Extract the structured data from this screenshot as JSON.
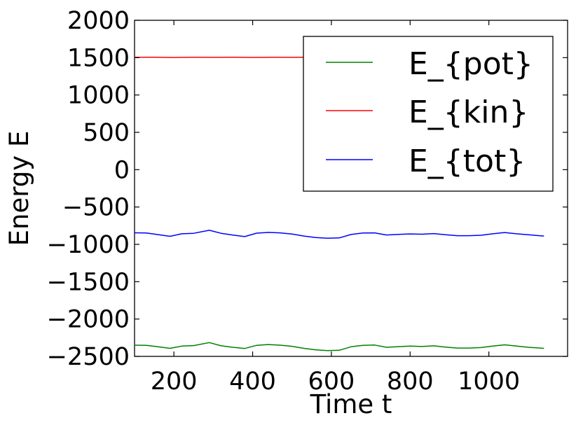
{
  "chart_data": {
    "type": "line",
    "title": "",
    "xlabel": "Time t",
    "ylabel": "Energy E",
    "xlim": [
      100,
      1200
    ],
    "ylim": [
      -2500,
      2000
    ],
    "xticks": [
      200,
      400,
      600,
      800,
      1000
    ],
    "xtick_labels": [
      "200",
      "400",
      "600",
      "800",
      "1000"
    ],
    "yticks": [
      -2500,
      -2000,
      -1500,
      -1000,
      -500,
      0,
      500,
      1000,
      1500,
      2000
    ],
    "ytick_labels": [
      "−2500",
      "−2000",
      "−1500",
      "−1000",
      "−500",
      "0",
      "500",
      "1000",
      "1500",
      "2000"
    ],
    "grid": false,
    "legend_position": "top-right",
    "series": [
      {
        "name": "E_{pot}",
        "color": "#008000",
        "x": [
          100,
          130,
          160,
          190,
          220,
          250,
          290,
          320,
          350,
          380,
          410,
          440,
          470,
          500,
          530,
          560,
          590,
          620,
          650,
          680,
          710,
          740,
          770,
          800,
          830,
          860,
          890,
          920,
          950,
          980,
          1010,
          1040,
          1070,
          1100,
          1140
        ],
        "y": [
          -2350,
          -2352,
          -2372,
          -2392,
          -2362,
          -2356,
          -2315,
          -2358,
          -2378,
          -2394,
          -2352,
          -2342,
          -2350,
          -2365,
          -2392,
          -2412,
          -2422,
          -2418,
          -2372,
          -2352,
          -2348,
          -2378,
          -2370,
          -2362,
          -2368,
          -2358,
          -2376,
          -2388,
          -2388,
          -2382,
          -2362,
          -2345,
          -2362,
          -2378,
          -2392
        ]
      },
      {
        "name": "E_{kin}",
        "color": "#ff0000",
        "x": [
          100,
          150,
          200,
          250,
          300,
          350,
          400,
          450,
          500,
          530
        ],
        "y": [
          1505,
          1506,
          1502,
          1505,
          1504,
          1506,
          1503,
          1505,
          1504,
          1505
        ]
      },
      {
        "name": "E_{tot}",
        "color": "#0000ff",
        "x": [
          100,
          130,
          160,
          190,
          220,
          250,
          290,
          320,
          350,
          380,
          410,
          440,
          470,
          500,
          530,
          560,
          590,
          620,
          650,
          680,
          710,
          740,
          770,
          800,
          830,
          860,
          890,
          920,
          950,
          980,
          1010,
          1040,
          1070,
          1100,
          1140
        ],
        "y": [
          -845,
          -848,
          -870,
          -892,
          -858,
          -852,
          -812,
          -852,
          -876,
          -896,
          -850,
          -840,
          -846,
          -862,
          -888,
          -908,
          -918,
          -914,
          -868,
          -848,
          -846,
          -874,
          -866,
          -860,
          -864,
          -856,
          -872,
          -884,
          -884,
          -878,
          -858,
          -842,
          -858,
          -872,
          -888
        ]
      }
    ]
  }
}
